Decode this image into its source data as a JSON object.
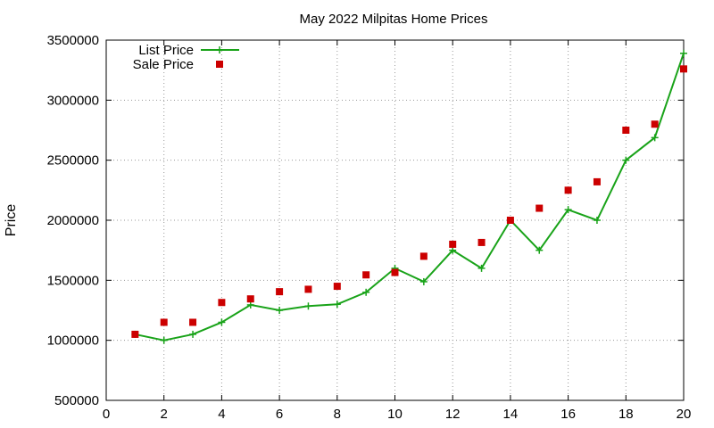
{
  "chart_data": {
    "type": "line",
    "title": "May 2022 Milpitas Home Prices",
    "xlabel": "",
    "ylabel": "Price",
    "xlim": [
      0,
      20
    ],
    "ylim": [
      500000,
      3500000
    ],
    "xticks": [
      0,
      2,
      4,
      6,
      8,
      10,
      12,
      14,
      16,
      18,
      20
    ],
    "yticks": [
      500000,
      1000000,
      1500000,
      2000000,
      2500000,
      3000000,
      3500000
    ],
    "grid": true,
    "legend_position": "top-left",
    "series": [
      {
        "name": "List Price",
        "style": "line-with-plus-markers",
        "color": "#19a319",
        "x": [
          1,
          2,
          3,
          4,
          5,
          6,
          7,
          8,
          9,
          10,
          11,
          12,
          13,
          14,
          15,
          16,
          17,
          18,
          19,
          20
        ],
        "values": [
          1050000,
          1000000,
          1050000,
          1150000,
          1295000,
          1250000,
          1285000,
          1300000,
          1400000,
          1600000,
          1488000,
          1750000,
          1600000,
          2000000,
          1750000,
          2088000,
          2000000,
          2500000,
          2688000,
          3390000
        ]
      },
      {
        "name": "Sale Price",
        "style": "square-markers",
        "color": "#cc0000",
        "x": [
          1,
          2,
          3,
          4,
          5,
          6,
          7,
          8,
          9,
          10,
          11,
          12,
          13,
          14,
          15,
          16,
          17,
          18,
          19,
          20
        ],
        "values": [
          1050000,
          1150000,
          1150000,
          1315000,
          1345000,
          1405000,
          1425000,
          1450000,
          1545000,
          1565000,
          1700000,
          1800000,
          1815000,
          2000000,
          2100000,
          2250000,
          2320000,
          2750000,
          2800000,
          3260000
        ]
      }
    ]
  }
}
